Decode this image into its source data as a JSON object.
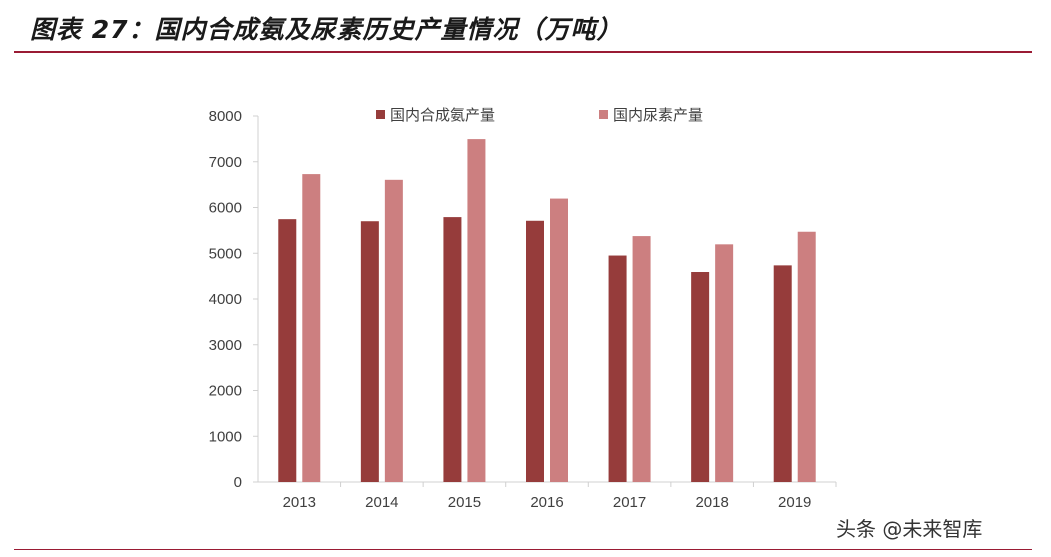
{
  "page": {
    "title": "图表 27：国内合成氨及尿素历史产量情况（万吨）",
    "watermark": "头条 @未来智库"
  },
  "colors": {
    "accent_rule": "#9a1b34",
    "series_1": "#963c3b",
    "series_2": "#cc7f80",
    "axis": "#d0d0d0"
  },
  "chart_data": {
    "type": "bar",
    "title": "",
    "xlabel": "",
    "ylabel": "",
    "categories": [
      "2013",
      "2014",
      "2015",
      "2016",
      "2017",
      "2018",
      "2019"
    ],
    "series": [
      {
        "name": "国内合成氨产量",
        "values": [
          5745,
          5700,
          5790,
          5710,
          4950,
          4590,
          4735
        ]
      },
      {
        "name": "国内尿素产量",
        "values": [
          6730,
          6605,
          7495,
          6195,
          5375,
          5195,
          5470
        ]
      }
    ],
    "ylim": [
      0,
      8000
    ],
    "yticks": [
      "0",
      "1000",
      "2000",
      "3000",
      "4000",
      "5000",
      "6000",
      "7000",
      "8000"
    ],
    "grid": false,
    "legend_position": "top"
  }
}
